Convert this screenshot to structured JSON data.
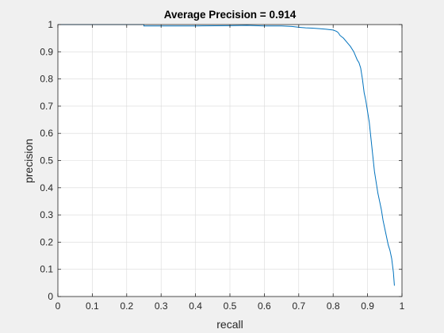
{
  "colors": {
    "figure_bg": "#f0f0f0",
    "axes_bg": "#ffffff",
    "line": "#0072bd",
    "grid": "#d9d9d9",
    "axis": "#262626"
  },
  "chart_data": {
    "type": "line",
    "title": "Average Precision = 0.914",
    "xlabel": "recall",
    "ylabel": "precision",
    "xlim": [
      0,
      1
    ],
    "ylim": [
      0,
      1
    ],
    "grid": true,
    "xticks": [
      0,
      0.1,
      0.2,
      0.3,
      0.4,
      0.5,
      0.6,
      0.7,
      0.8,
      0.9,
      1
    ],
    "yticks": [
      0,
      0.1,
      0.2,
      0.3,
      0.4,
      0.5,
      0.6,
      0.7,
      0.8,
      0.9,
      1
    ],
    "xtick_labels": [
      "0",
      "0.1",
      "0.2",
      "0.3",
      "0.4",
      "0.5",
      "0.6",
      "0.7",
      "0.8",
      "0.9",
      "1"
    ],
    "ytick_labels": [
      "0",
      "0.1",
      "0.2",
      "0.3",
      "0.4",
      "0.5",
      "0.6",
      "0.7",
      "0.8",
      "0.9",
      "1"
    ],
    "series": [
      {
        "x": [
          0,
          0.25,
          0.25,
          0.4,
          0.5,
          0.55,
          0.6,
          0.65,
          0.68,
          0.7,
          0.72,
          0.74,
          0.76,
          0.78,
          0.8,
          0.81,
          0.815,
          0.82,
          0.83,
          0.84,
          0.85,
          0.86,
          0.865,
          0.87,
          0.875,
          0.88,
          0.885,
          0.89,
          0.895,
          0.9,
          0.905,
          0.91,
          0.915,
          0.92,
          0.925,
          0.93,
          0.935,
          0.94,
          0.945,
          0.95,
          0.955,
          0.96,
          0.965,
          0.97,
          0.975,
          0.978
        ],
        "y": [
          1.0,
          1.0,
          0.995,
          0.995,
          0.996,
          0.997,
          0.995,
          0.995,
          0.993,
          0.99,
          0.988,
          0.987,
          0.985,
          0.983,
          0.98,
          0.975,
          0.97,
          0.96,
          0.95,
          0.935,
          0.92,
          0.9,
          0.885,
          0.87,
          0.86,
          0.84,
          0.8,
          0.75,
          0.72,
          0.68,
          0.64,
          0.58,
          0.52,
          0.46,
          0.42,
          0.38,
          0.35,
          0.32,
          0.28,
          0.25,
          0.22,
          0.19,
          0.17,
          0.14,
          0.09,
          0.04
        ]
      }
    ]
  }
}
